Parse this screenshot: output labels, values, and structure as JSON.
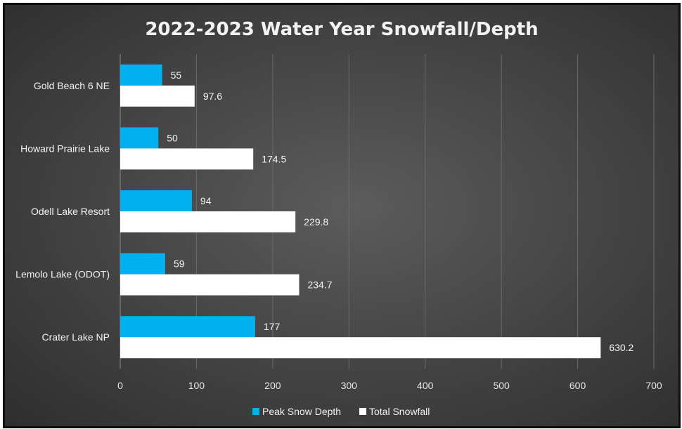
{
  "chart_data": {
    "type": "bar",
    "orientation": "horizontal",
    "title": "2022-2023 Water Year Snowfall/Depth",
    "categories": [
      "Gold Beach 6 NE",
      "Howard Prairie Lake",
      "Odell Lake Resort",
      "Lemolo Lake (ODOT)",
      "Crater Lake NP"
    ],
    "series": [
      {
        "name": "Peak Snow Depth",
        "color": "#00b0f0",
        "values": [
          55,
          50,
          94,
          59,
          177
        ],
        "labels": [
          "55",
          "50",
          "94",
          "59",
          "177"
        ]
      },
      {
        "name": "Total Snowfall",
        "color": "#ffffff",
        "values": [
          97.6,
          174.5,
          229.8,
          234.7,
          630.2
        ],
        "labels": [
          "97.6",
          "174.5",
          "229.8",
          "234.7",
          "630.2"
        ]
      }
    ],
    "xlim": [
      0,
      700
    ],
    "xticks": [
      0,
      100,
      200,
      300,
      400,
      500,
      600,
      700
    ],
    "xtick_labels": [
      "0",
      "100",
      "200",
      "300",
      "400",
      "500",
      "600",
      "700"
    ],
    "grid": true,
    "legend": "bottom",
    "xlabel": "",
    "ylabel": ""
  }
}
